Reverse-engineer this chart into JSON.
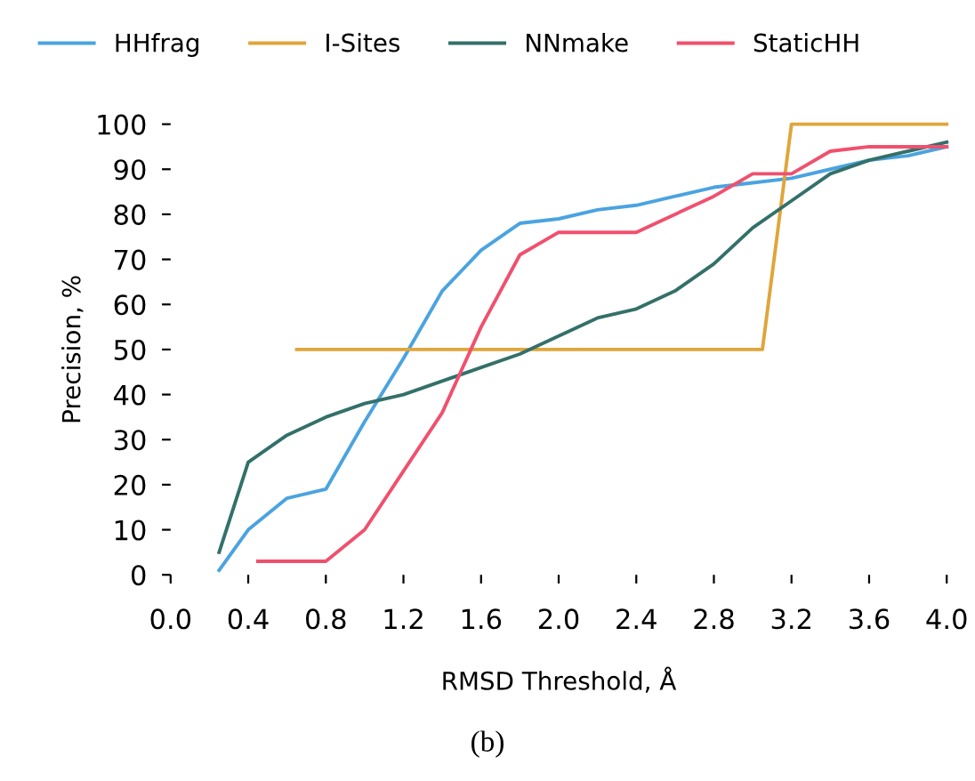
{
  "chart_data": {
    "type": "line",
    "xlabel": "RMSD Threshold, Å",
    "ylabel": "Precision, %",
    "annotations": [
      "(b)"
    ],
    "xlim": [
      0.0,
      4.0
    ],
    "ylim": [
      0,
      100
    ],
    "xticks": [
      {
        "value": 0.0,
        "label": "0.0"
      },
      {
        "value": 0.4,
        "label": "0.4"
      },
      {
        "value": 0.8,
        "label": "0.8"
      },
      {
        "value": 1.2,
        "label": "1.2"
      },
      {
        "value": 1.6,
        "label": "1.6"
      },
      {
        "value": 2.0,
        "label": "2.0"
      },
      {
        "value": 2.4,
        "label": "2.4"
      },
      {
        "value": 2.8,
        "label": "2.8"
      },
      {
        "value": 3.2,
        "label": "3.2"
      },
      {
        "value": 3.6,
        "label": "3.6"
      },
      {
        "value": 4.0,
        "label": "4.0"
      }
    ],
    "yticks": [
      0,
      10,
      20,
      30,
      40,
      50,
      60,
      70,
      80,
      90,
      100
    ],
    "grid": false,
    "legend": "top",
    "marker": "none",
    "line_style": "solid",
    "series": [
      {
        "name": "HHfrag",
        "color": "#4ba3e0",
        "x": [
          0.25,
          0.4,
          0.6,
          0.8,
          1.0,
          1.2,
          1.4,
          1.6,
          1.8,
          2.0,
          2.2,
          2.4,
          2.6,
          2.8,
          3.0,
          3.2,
          3.4,
          3.6,
          3.8,
          4.0
        ],
        "values": [
          1,
          10,
          17,
          19,
          34,
          48,
          63,
          72,
          78,
          79,
          81,
          82,
          84,
          86,
          87,
          88,
          90,
          92,
          93,
          95
        ]
      },
      {
        "name": "I-Sites",
        "color": "#e0a53a",
        "x": [
          0.65,
          3.05,
          3.2,
          4.0
        ],
        "values": [
          50,
          50,
          100,
          100
        ]
      },
      {
        "name": "NNmake",
        "color": "#33706a",
        "x": [
          0.25,
          0.4,
          0.6,
          0.8,
          1.0,
          1.2,
          1.4,
          1.6,
          1.8,
          2.0,
          2.2,
          2.4,
          2.6,
          2.8,
          3.0,
          3.2,
          3.4,
          3.6,
          3.8,
          4.0
        ],
        "values": [
          5,
          25,
          31,
          35,
          38,
          40,
          43,
          46,
          49,
          53,
          57,
          59,
          63,
          69,
          77,
          83,
          89,
          92,
          94,
          96
        ]
      },
      {
        "name": "StaticHH",
        "color": "#f0506e",
        "x": [
          0.45,
          0.6,
          0.8,
          1.0,
          1.2,
          1.4,
          1.6,
          1.8,
          2.0,
          2.2,
          2.4,
          2.6,
          2.8,
          3.0,
          3.2,
          3.4,
          3.6,
          3.8,
          4.0
        ],
        "values": [
          3,
          3,
          3,
          10,
          23,
          36,
          55,
          71,
          76,
          76,
          76,
          80,
          84,
          89,
          89,
          94,
          95,
          95,
          95
        ]
      }
    ]
  }
}
